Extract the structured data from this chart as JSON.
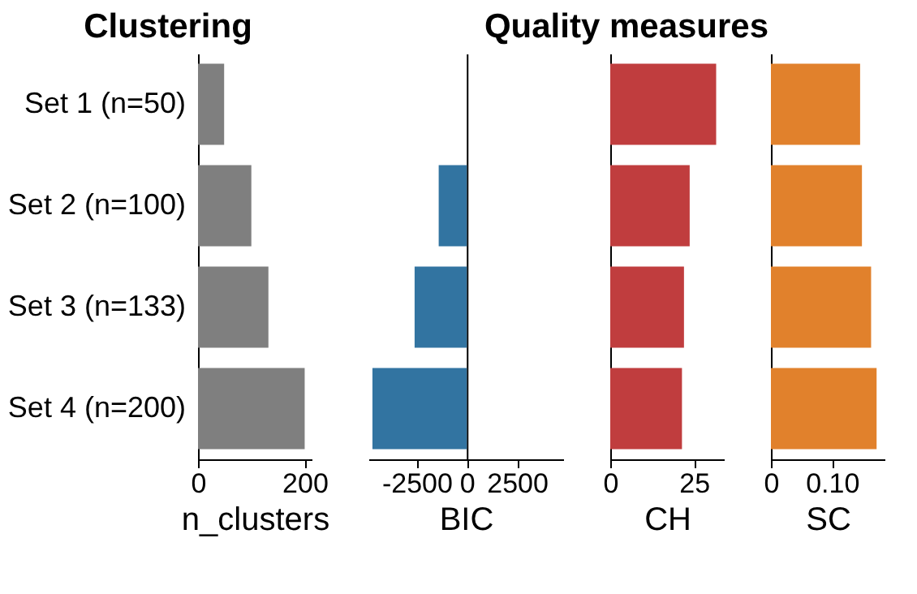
{
  "chart_data": [
    {
      "type": "bar",
      "orientation": "horizontal",
      "title": "Clustering",
      "categories": [
        "Set 1 (n=50)",
        "Set 2 (n=100)",
        "Set 3 (n=133)",
        "Set 4 (n=200)"
      ],
      "values": [
        49,
        100,
        132,
        200
      ],
      "color": "#7f7f7f",
      "xlim": [
        0,
        213
      ],
      "xticks": [
        0,
        200
      ],
      "xlabel": "n_clusters"
    },
    {
      "type": "bar",
      "orientation": "horizontal",
      "title": "Quality measures",
      "values": [
        0,
        -1400,
        -2600,
        -4700
      ],
      "color": "#3274a1",
      "xlim": [
        -4900,
        4800
      ],
      "xticks": [
        -2500,
        0,
        2500
      ],
      "xlabel": "BIC",
      "tick_labels": "x"
    },
    {
      "type": "bar",
      "orientation": "horizontal",
      "values": [
        31.6,
        23.7,
        22.0,
        21.4
      ],
      "color": "#c03d3e",
      "xlim": [
        0,
        33.9
      ],
      "xticks": [
        0,
        25
      ],
      "xlabel": "CH",
      "tick_labels": "x"
    },
    {
      "type": "bar",
      "orientation": "horizontal",
      "values": [
        0.146,
        0.149,
        0.164,
        0.173
      ],
      "color": "#e1812c",
      "xlim": [
        0,
        0.186
      ],
      "xticks": [
        0,
        {
          "value": 0.1,
          "label": "0.10"
        }
      ],
      "xlabel": "SC",
      "tick_labels": "x"
    }
  ]
}
